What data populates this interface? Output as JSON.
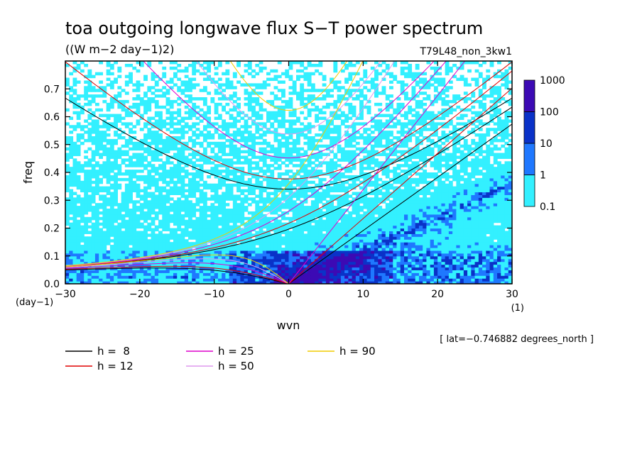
{
  "chart_data": {
    "type": "line",
    "title": "toa outgoing longwave flux S−T power spectrum",
    "subtitle": "((W m−2 day−1)2)",
    "run_label": "T79L48_non_3kw1",
    "xlabel": "wvn",
    "ylabel": "freq",
    "x_unit": "(1)",
    "y_unit": "(day−1)",
    "xlim": [
      -30,
      30
    ],
    "ylim": [
      0,
      0.8
    ],
    "x_ticks": [
      -30,
      -20,
      -10,
      0,
      10,
      20,
      30
    ],
    "x_tick_labels": [
      "−30",
      "−20",
      "−10",
      "0",
      "10",
      "20",
      "30"
    ],
    "y_ticks": [
      0,
      0.1,
      0.2,
      0.3,
      0.4,
      0.5,
      0.6,
      0.7
    ],
    "y_tick_labels": [
      "0.0",
      "0.1",
      "0.2",
      "0.3",
      "0.4",
      "0.5",
      "0.6",
      "0.7"
    ],
    "lat_note": "[ lat=−0.746882 degrees_north ]",
    "colorbar": {
      "labels": [
        "0.1",
        "1",
        "10",
        "100",
        "1000"
      ],
      "colors": [
        "#33f0ff",
        "#1f78ff",
        "#0a32c8",
        "#3c0ab4"
      ]
    },
    "dispersion_curves": [
      {
        "name": "h =  8",
        "h": 8,
        "color": "#000000"
      },
      {
        "name": "h = 12",
        "h": 12,
        "color": "#e00000"
      },
      {
        "name": "h = 25",
        "h": 25,
        "color": "#dd00cc"
      },
      {
        "name": "h = 50",
        "h": 50,
        "color": "#dd99ee"
      },
      {
        "name": "h = 90",
        "h": 90,
        "color": "#f0cc00"
      }
    ]
  }
}
